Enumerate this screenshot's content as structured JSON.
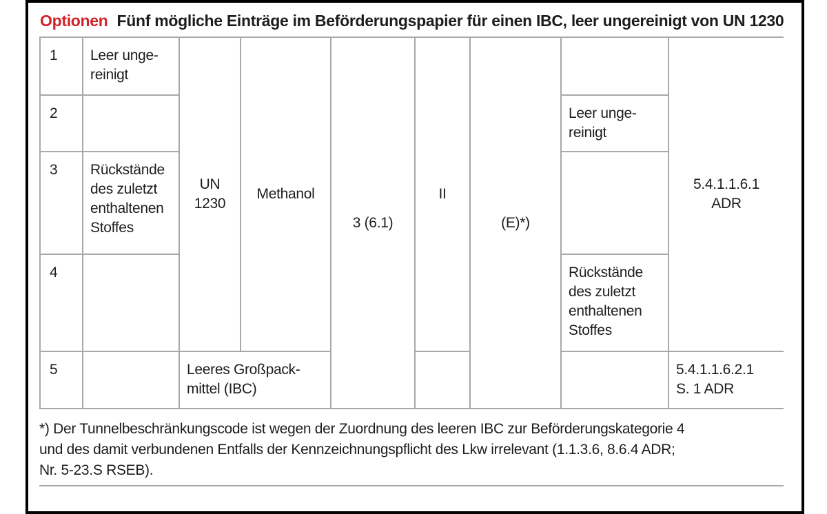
{
  "title": {
    "label": "Optionen",
    "text": "Fünf mögliche Einträge im Beförderungspapier für einen IBC, leer ungereinigt von UN 1230"
  },
  "colors": {
    "accent_red": "#d2232a",
    "grid_line": "#a8a8a8",
    "frame": "#000000",
    "ink": "#1d1d1b"
  },
  "table": {
    "row_numbers": [
      "1",
      "2",
      "3",
      "4",
      "5"
    ],
    "description_left": {
      "row1": "Leer unge-\nreinigt",
      "row3": "Rückstände\ndes zuletzt\nenthaltenen\nStoffes"
    },
    "un_number": "UN\n1230",
    "substance": "Methanol",
    "class_code": "3 (6.1)",
    "packing_group": "II",
    "tunnel_code": "(E)*)",
    "description_right": {
      "row2": "Leer unge-\nreinigt",
      "row4": "Rückstände\ndes zuletzt\nenthaltenen\nStoffes"
    },
    "adr_reference_rows1to4": "5.4.1.1.6.1\nADR",
    "row5_entry": "Leeres Großpack-\nmittel (IBC)",
    "adr_reference_row5": "5.4.1.1.6.2.1\nS. 1 ADR"
  },
  "footnote": {
    "lines": [
      "*) Der Tunnelbeschränkungscode ist wegen der Zuordnung des leeren IBC zur Beförderungskategorie 4",
      "und des damit verbundenen Entfalls der Kennzeichnungspflicht des Lkw irrelevant (1.1.3.6, 8.6.4 ADR;",
      "Nr. 5-23.S RSEB)."
    ]
  }
}
